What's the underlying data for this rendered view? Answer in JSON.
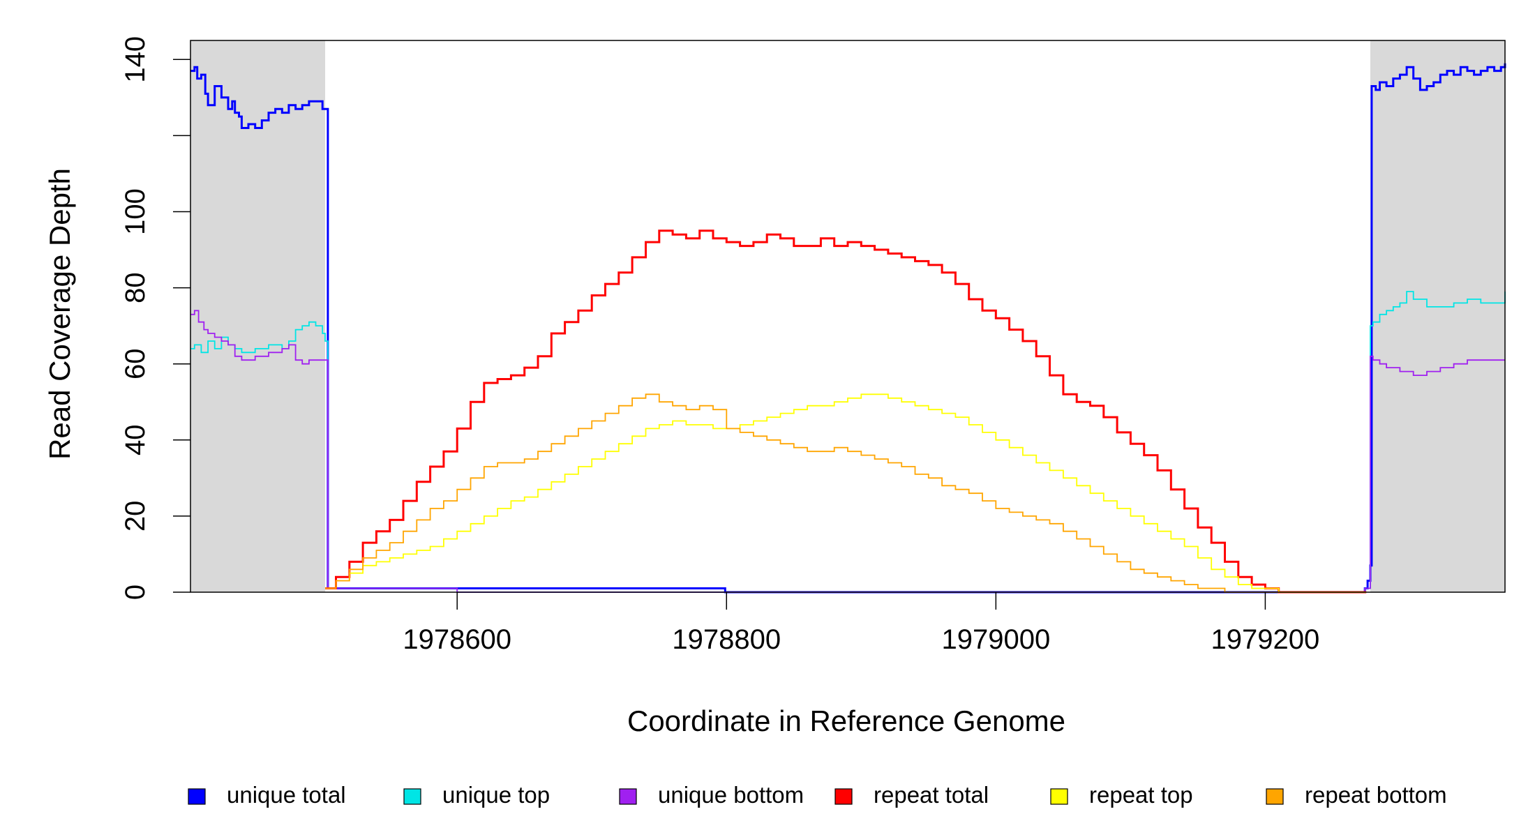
{
  "chart_data": {
    "type": "line",
    "title": "",
    "xlabel": "Coordinate in Reference Genome",
    "ylabel": "Read Coverage Depth",
    "xlim": [
      1978402,
      1979378
    ],
    "ylim": [
      0,
      145
    ],
    "x_ticks": [
      1978600,
      1978800,
      1979000,
      1979200
    ],
    "x_tick_labels": [
      "1978600",
      "1978800",
      "1979000",
      "1979200"
    ],
    "y_ticks": [
      0,
      20,
      40,
      60,
      80,
      100,
      120,
      140
    ],
    "y_tick_labels": [
      "0",
      "20",
      "40",
      "60",
      "80",
      "100",
      "",
      "140"
    ],
    "shaded_regions": [
      [
        1978402,
        1978502
      ],
      [
        1979278,
        1979378
      ]
    ],
    "grid": false,
    "legend_position": "bottom",
    "series": [
      {
        "name": "unique total",
        "color": "#0000ff",
        "x": [
          1978402,
          1978405,
          1978407,
          1978410,
          1978413,
          1978415,
          1978420,
          1978425,
          1978430,
          1978433,
          1978435,
          1978438,
          1978440,
          1978445,
          1978450,
          1978455,
          1978460,
          1978465,
          1978470,
          1978475,
          1978480,
          1978485,
          1978490,
          1978495,
          1978500,
          1978502,
          1978504,
          1978600,
          1978797,
          1978799,
          1979000,
          1979270,
          1979274,
          1979276,
          1979278,
          1979279,
          1979282,
          1979285,
          1979290,
          1979295,
          1979300,
          1979305,
          1979310,
          1979315,
          1979320,
          1979325,
          1979330,
          1979335,
          1979340,
          1979345,
          1979350,
          1979355,
          1979360,
          1979365,
          1979370,
          1979375,
          1979378
        ],
        "y": [
          137,
          138,
          135,
          136,
          131,
          128,
          133,
          130,
          127,
          129,
          126,
          125,
          122,
          123,
          122,
          124,
          126,
          127,
          126,
          128,
          127,
          128,
          129,
          129,
          127,
          127,
          1,
          1,
          1,
          0,
          0,
          0,
          1,
          3,
          7,
          133,
          132,
          134,
          133,
          135,
          136,
          138,
          135,
          132,
          133,
          134,
          136,
          137,
          136,
          138,
          137,
          136,
          137,
          138,
          137,
          138,
          139
        ]
      },
      {
        "name": "unique top",
        "color": "#00e5e5",
        "x": [
          1978402,
          1978405,
          1978410,
          1978415,
          1978420,
          1978425,
          1978430,
          1978435,
          1978440,
          1978450,
          1978460,
          1978470,
          1978475,
          1978480,
          1978485,
          1978490,
          1978495,
          1978500,
          1978502,
          1978504,
          1978600,
          1978800,
          1979000,
          1979270,
          1979274,
          1979278,
          1979280,
          1979285,
          1979290,
          1979295,
          1979300,
          1979305,
          1979310,
          1979320,
          1979330,
          1979340,
          1979350,
          1979360,
          1979370,
          1979378
        ],
        "y": [
          64,
          65,
          63,
          66,
          64,
          67,
          65,
          64,
          63,
          64,
          65,
          64,
          66,
          69,
          70,
          71,
          70,
          68,
          66,
          1,
          0,
          0,
          0,
          0,
          1,
          70,
          71,
          73,
          74,
          75,
          76,
          79,
          77,
          75,
          75,
          76,
          77,
          76,
          76,
          79
        ]
      },
      {
        "name": "unique bottom",
        "color": "#a020f0",
        "x": [
          1978402,
          1978405,
          1978408,
          1978412,
          1978415,
          1978420,
          1978425,
          1978430,
          1978435,
          1978440,
          1978450,
          1978460,
          1978470,
          1978475,
          1978480,
          1978485,
          1978490,
          1978495,
          1978500,
          1978502,
          1978504,
          1978600,
          1978800,
          1979000,
          1979270,
          1979274,
          1979278,
          1979280,
          1979285,
          1979290,
          1979295,
          1979300,
          1979305,
          1979310,
          1979320,
          1979330,
          1979340,
          1979350,
          1979360,
          1979370,
          1979378
        ],
        "y": [
          73,
          74,
          71,
          69,
          68,
          67,
          66,
          65,
          62,
          61,
          62,
          63,
          64,
          65,
          61,
          60,
          61,
          61,
          61,
          61,
          1,
          0,
          0,
          0,
          0,
          1,
          62,
          61,
          60,
          59,
          59,
          58,
          58,
          57,
          58,
          59,
          60,
          61,
          61,
          61,
          61
        ]
      },
      {
        "name": "repeat total",
        "color": "#ff0000",
        "x": [
          1978502,
          1978510,
          1978520,
          1978530,
          1978540,
          1978550,
          1978560,
          1978570,
          1978580,
          1978590,
          1978600,
          1978610,
          1978620,
          1978630,
          1978640,
          1978650,
          1978660,
          1978670,
          1978680,
          1978690,
          1978700,
          1978710,
          1978720,
          1978730,
          1978740,
          1978750,
          1978760,
          1978770,
          1978780,
          1978790,
          1978800,
          1978810,
          1978820,
          1978830,
          1978840,
          1978850,
          1978860,
          1978870,
          1978880,
          1978890,
          1978900,
          1978910,
          1978920,
          1978930,
          1978940,
          1978950,
          1978960,
          1978970,
          1978980,
          1978990,
          1979000,
          1979010,
          1979020,
          1979030,
          1979040,
          1979050,
          1979060,
          1979070,
          1979080,
          1979090,
          1979100,
          1979110,
          1979120,
          1979130,
          1979140,
          1979150,
          1979160,
          1979170,
          1979180,
          1979190,
          1979200,
          1979210,
          1979220,
          1979230,
          1979240,
          1979250,
          1979260,
          1979270,
          1979275
        ],
        "y": [
          1,
          4,
          8,
          13,
          16,
          19,
          24,
          29,
          33,
          37,
          43,
          50,
          55,
          56,
          57,
          59,
          62,
          68,
          71,
          74,
          78,
          81,
          84,
          88,
          92,
          95,
          94,
          93,
          95,
          93,
          92,
          91,
          92,
          94,
          93,
          91,
          91,
          93,
          91,
          92,
          91,
          90,
          89,
          88,
          87,
          86,
          84,
          81,
          77,
          74,
          72,
          69,
          66,
          62,
          57,
          52,
          50,
          49,
          46,
          42,
          39,
          36,
          32,
          27,
          22,
          17,
          13,
          8,
          4,
          2,
          1,
          0,
          0,
          0,
          0,
          0,
          0,
          0,
          0
        ]
      },
      {
        "name": "repeat top",
        "color": "#ffff00",
        "x": [
          1978502,
          1978510,
          1978520,
          1978530,
          1978540,
          1978550,
          1978560,
          1978570,
          1978580,
          1978590,
          1978600,
          1978610,
          1978620,
          1978630,
          1978640,
          1978650,
          1978660,
          1978670,
          1978680,
          1978690,
          1978700,
          1978710,
          1978720,
          1978730,
          1978740,
          1978750,
          1978760,
          1978770,
          1978780,
          1978790,
          1978800,
          1978810,
          1978820,
          1978830,
          1978840,
          1978850,
          1978860,
          1978870,
          1978880,
          1978890,
          1978900,
          1978910,
          1978920,
          1978930,
          1978940,
          1978950,
          1978960,
          1978970,
          1978980,
          1978990,
          1979000,
          1979010,
          1979020,
          1979030,
          1979040,
          1979050,
          1979060,
          1979070,
          1979080,
          1979090,
          1979100,
          1979110,
          1979120,
          1979130,
          1979140,
          1979150,
          1979160,
          1979170,
          1979180,
          1979190,
          1979200,
          1979210,
          1979220,
          1979230,
          1979240,
          1979250,
          1979260,
          1979270,
          1979275
        ],
        "y": [
          1,
          3,
          5,
          7,
          8,
          9,
          10,
          11,
          12,
          14,
          16,
          18,
          20,
          22,
          24,
          25,
          27,
          29,
          31,
          33,
          35,
          37,
          39,
          41,
          43,
          44,
          45,
          44,
          44,
          43,
          43,
          44,
          45,
          46,
          47,
          48,
          49,
          49,
          50,
          51,
          52,
          52,
          51,
          50,
          49,
          48,
          47,
          46,
          44,
          42,
          40,
          38,
          36,
          34,
          32,
          30,
          28,
          26,
          24,
          22,
          20,
          18,
          16,
          14,
          12,
          9,
          6,
          4,
          2,
          1,
          1,
          0,
          0,
          0,
          0,
          0,
          0,
          0,
          0
        ]
      },
      {
        "name": "repeat bottom",
        "color": "#ffa500",
        "x": [
          1978502,
          1978510,
          1978520,
          1978530,
          1978540,
          1978550,
          1978560,
          1978570,
          1978580,
          1978590,
          1978600,
          1978610,
          1978620,
          1978630,
          1978640,
          1978650,
          1978660,
          1978670,
          1978680,
          1978690,
          1978700,
          1978710,
          1978720,
          1978730,
          1978740,
          1978750,
          1978760,
          1978770,
          1978780,
          1978790,
          1978800,
          1978810,
          1978820,
          1978830,
          1978840,
          1978850,
          1978860,
          1978870,
          1978880,
          1978890,
          1978900,
          1978910,
          1978920,
          1978930,
          1978940,
          1978950,
          1978960,
          1978970,
          1978980,
          1978990,
          1979000,
          1979010,
          1979020,
          1979030,
          1979040,
          1979050,
          1979060,
          1979070,
          1979080,
          1979090,
          1979100,
          1979110,
          1979120,
          1979130,
          1979140,
          1979150,
          1979160,
          1979170,
          1979180,
          1979190,
          1979200,
          1979210,
          1979220,
          1979230,
          1979240,
          1979250,
          1979260,
          1979270,
          1979275
        ],
        "y": [
          1,
          3,
          6,
          9,
          11,
          13,
          16,
          19,
          22,
          24,
          27,
          30,
          33,
          34,
          34,
          35,
          37,
          39,
          41,
          43,
          45,
          47,
          49,
          51,
          52,
          50,
          49,
          48,
          49,
          48,
          43,
          42,
          41,
          40,
          39,
          38,
          37,
          37,
          38,
          37,
          36,
          35,
          34,
          33,
          31,
          30,
          28,
          27,
          26,
          24,
          22,
          21,
          20,
          19,
          18,
          16,
          14,
          12,
          10,
          8,
          6,
          5,
          4,
          3,
          2,
          1,
          1,
          0,
          0,
          0,
          0,
          0,
          0,
          0,
          0,
          0,
          0,
          0,
          0
        ]
      }
    ]
  }
}
